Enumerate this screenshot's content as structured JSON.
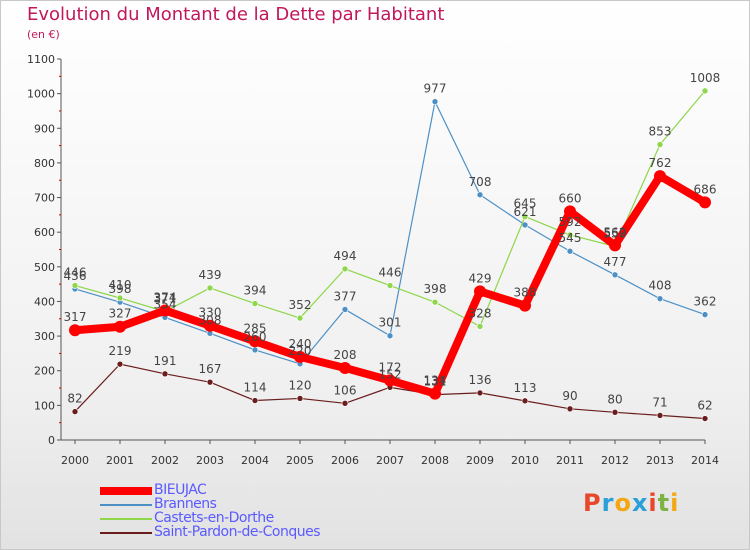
{
  "title": "Evolution du Montant de la Dette par Habitant",
  "subtitle": "(en €)",
  "logo": {
    "text": "Proxiti",
    "colors": [
      "#e8472c",
      "#2a9fd8",
      "#f3a712",
      "#2a9fd8",
      "#e8472c",
      "#7cb342",
      "#f3a712"
    ]
  },
  "chart_data": {
    "type": "line",
    "title": "Evolution du Montant de la Dette par Habitant",
    "subtitle": "(en €)",
    "x": [
      2000,
      2001,
      2002,
      2003,
      2004,
      2005,
      2006,
      2007,
      2008,
      2009,
      2010,
      2011,
      2012,
      2013,
      2014
    ],
    "ylim": [
      0,
      1100
    ],
    "yticks": [
      0,
      100,
      200,
      300,
      400,
      500,
      600,
      700,
      800,
      900,
      1000,
      1100
    ],
    "grid": false,
    "legend_position": "bottom-left",
    "series": [
      {
        "name": "BIEUJAC",
        "color": "#ff0000",
        "values": [
          317,
          327,
          374,
          330,
          285,
          240,
          208,
          172,
          134,
          429,
          388,
          660,
          562,
          762,
          686
        ],
        "labels": [
          "317",
          "327",
          "374",
          "330",
          "285",
          "240",
          "208",
          "172",
          "134",
          "429",
          "388",
          "660",
          "562",
          "762",
          "686"
        ]
      },
      {
        "name": "Brannens",
        "color": "#4d90c6",
        "values": [
          436,
          398,
          354,
          308,
          260,
          220,
          377,
          301,
          977,
          708,
          621,
          545,
          477,
          408,
          362
        ],
        "labels": [
          "436",
          "398",
          "354",
          "308",
          "260",
          "220",
          "377",
          "301",
          "977",
          "708",
          "621",
          "545",
          "477",
          "408",
          "362"
        ]
      },
      {
        "name": "Castets-en-Dorthe",
        "color": "#8ed64a",
        "values": [
          446,
          410,
          371,
          439,
          394,
          352,
          494,
          446,
          398,
          328,
          645,
          592,
          559,
          853,
          1008
        ],
        "labels": [
          "446",
          "410",
          "371",
          "439",
          "394",
          "352",
          "494",
          "446",
          "398",
          "328",
          "645",
          "592",
          "559",
          "853",
          "1008"
        ]
      },
      {
        "name": "Saint-Pardon-de-Conques",
        "color": "#6b1d1d",
        "values": [
          82,
          219,
          191,
          167,
          114,
          120,
          106,
          152,
          131,
          136,
          113,
          90,
          80,
          71,
          62
        ],
        "labels": [
          "82",
          "219",
          "191",
          "167",
          "114",
          "120",
          "106",
          "152",
          "131",
          "136",
          "113",
          "90",
          "80",
          "71",
          "62"
        ]
      }
    ]
  }
}
